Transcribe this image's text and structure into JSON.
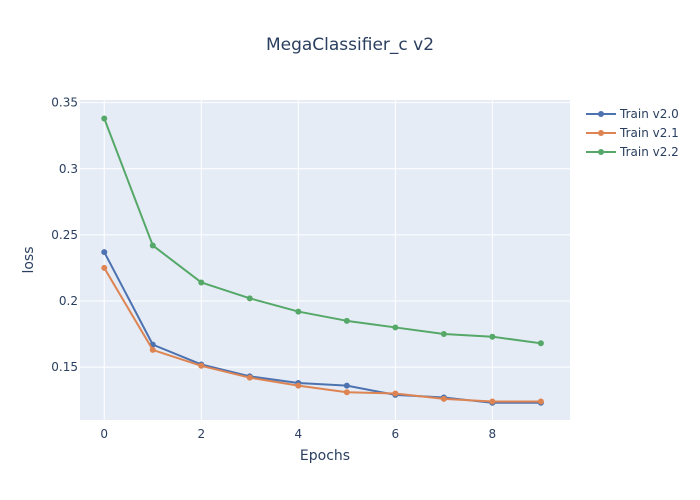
{
  "chart_data": {
    "type": "line",
    "title": "MegaClassifier_c v2",
    "xlabel": "Epochs",
    "ylabel": "loss",
    "x": [
      0,
      1,
      2,
      3,
      4,
      5,
      6,
      7,
      8,
      9
    ],
    "xlim": [
      -0.5,
      9.6
    ],
    "ylim": [
      0.11,
      0.352
    ],
    "xticks": [
      0,
      2,
      4,
      6,
      8
    ],
    "yticks": [
      0.15,
      0.2,
      0.25,
      0.3,
      0.35
    ],
    "ytick_labels": [
      "0.15",
      "0.2",
      "0.25",
      "0.3",
      "0.35"
    ],
    "grid": true,
    "legend_position": "top-right",
    "background_color": "#e5ecf6",
    "series": [
      {
        "name": "Train v2.0",
        "color": "#4c72b0",
        "values": [
          0.237,
          0.167,
          0.152,
          0.143,
          0.138,
          0.136,
          0.129,
          0.127,
          0.123,
          0.123
        ]
      },
      {
        "name": "Train v2.1",
        "color": "#dd8452",
        "values": [
          0.225,
          0.163,
          0.151,
          0.142,
          0.136,
          0.131,
          0.13,
          0.126,
          0.124,
          0.124
        ]
      },
      {
        "name": "Train v2.2",
        "color": "#55a868",
        "values": [
          0.338,
          0.242,
          0.214,
          0.202,
          0.192,
          0.185,
          0.18,
          0.175,
          0.173,
          0.168
        ]
      }
    ]
  }
}
